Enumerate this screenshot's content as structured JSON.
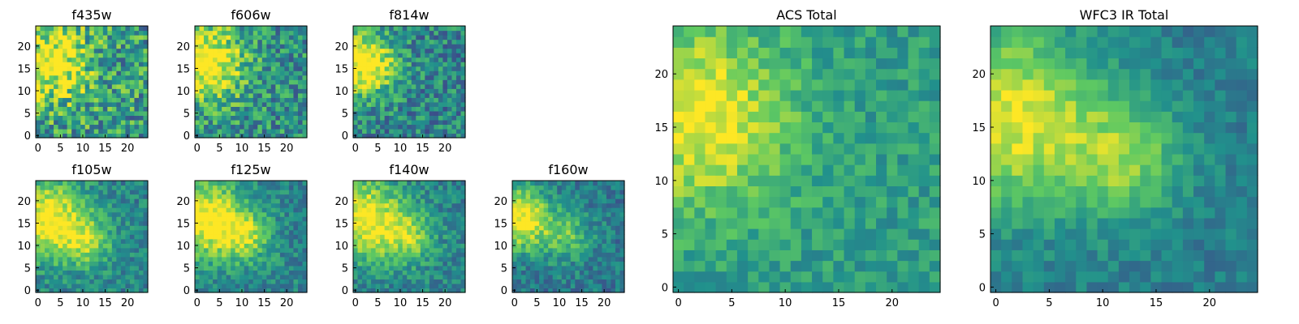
{
  "colormap": {
    "name": "viridis",
    "stops": [
      "#440154",
      "#3b528b",
      "#21918c",
      "#5ec962",
      "#fde725"
    ]
  },
  "chart_data": [
    {
      "type": "heatmap",
      "title": "f435w",
      "x_ticks": [
        "0",
        "5",
        "10",
        "15",
        "20"
      ],
      "y_ticks": [
        "0",
        "5",
        "10",
        "15",
        "20"
      ],
      "grid_size": [
        25,
        25
      ],
      "xlim": [
        0,
        24
      ],
      "ylim": [
        0,
        24
      ],
      "field": {
        "noise": 0.6,
        "seed": 11,
        "blobs": [
          [
            3,
            16,
            6,
            0.5
          ]
        ],
        "base": 0.55
      }
    },
    {
      "type": "heatmap",
      "title": "f606w",
      "x_ticks": [
        "0",
        "5",
        "10",
        "15",
        "20"
      ],
      "y_ticks": [
        "0",
        "5",
        "10",
        "15",
        "20"
      ],
      "grid_size": [
        25,
        25
      ],
      "xlim": [
        0,
        24
      ],
      "ylim": [
        0,
        24
      ],
      "field": {
        "noise": 0.5,
        "seed": 23,
        "blobs": [
          [
            2,
            16,
            6,
            0.6
          ]
        ],
        "base": 0.5
      }
    },
    {
      "type": "heatmap",
      "title": "f814w",
      "x_ticks": [
        "0",
        "5",
        "10",
        "15",
        "20"
      ],
      "y_ticks": [
        "0",
        "5",
        "10",
        "15",
        "20"
      ],
      "grid_size": [
        25,
        25
      ],
      "xlim": [
        0,
        24
      ],
      "ylim": [
        0,
        24
      ],
      "field": {
        "noise": 0.45,
        "seed": 37,
        "blobs": [
          [
            2,
            16,
            5,
            0.65
          ]
        ],
        "base": 0.45
      }
    },
    {
      "type": "heatmap",
      "title": "f105w",
      "x_ticks": [
        "0",
        "5",
        "10",
        "15",
        "20"
      ],
      "y_ticks": [
        "0",
        "5",
        "10",
        "15",
        "20"
      ],
      "grid_size": [
        25,
        25
      ],
      "xlim": [
        0,
        24
      ],
      "ylim": [
        0,
        24
      ],
      "field": {
        "noise": 0.3,
        "seed": 41,
        "blobs": [
          [
            2,
            16,
            6,
            0.6
          ],
          [
            11,
            11,
            4,
            0.35
          ]
        ],
        "base": 0.45
      }
    },
    {
      "type": "heatmap",
      "title": "f125w",
      "x_ticks": [
        "0",
        "5",
        "10",
        "15",
        "20"
      ],
      "y_ticks": [
        "0",
        "5",
        "10",
        "15",
        "20"
      ],
      "grid_size": [
        25,
        25
      ],
      "xlim": [
        0,
        24
      ],
      "ylim": [
        0,
        24
      ],
      "field": {
        "noise": 0.3,
        "seed": 53,
        "blobs": [
          [
            2,
            16,
            6,
            0.6
          ],
          [
            11,
            12,
            4,
            0.35
          ]
        ],
        "base": 0.45
      }
    },
    {
      "type": "heatmap",
      "title": "f140w",
      "x_ticks": [
        "0",
        "5",
        "10",
        "15",
        "20"
      ],
      "y_ticks": [
        "0",
        "5",
        "10",
        "15",
        "20"
      ],
      "grid_size": [
        25,
        25
      ],
      "xlim": [
        0,
        24
      ],
      "ylim": [
        0,
        24
      ],
      "field": {
        "noise": 0.3,
        "seed": 67,
        "blobs": [
          [
            2,
            16,
            6,
            0.6
          ],
          [
            12,
            12,
            4,
            0.35
          ]
        ],
        "base": 0.45
      }
    },
    {
      "type": "heatmap",
      "title": "f160w",
      "x_ticks": [
        "0",
        "5",
        "10",
        "15",
        "20"
      ],
      "y_ticks": [
        "0",
        "5",
        "10",
        "15",
        "20"
      ],
      "grid_size": [
        25,
        25
      ],
      "xlim": [
        0,
        24
      ],
      "ylim": [
        0,
        24
      ],
      "field": {
        "noise": 0.3,
        "seed": 79,
        "blobs": [
          [
            1,
            16,
            5,
            0.65
          ],
          [
            12,
            12,
            4,
            0.3
          ]
        ],
        "base": 0.4
      }
    },
    {
      "type": "heatmap",
      "title": "ACS Total",
      "x_ticks": [
        "0",
        "5",
        "10",
        "15",
        "20"
      ],
      "y_ticks": [
        "0",
        "5",
        "10",
        "15",
        "20"
      ],
      "grid_size": [
        25,
        25
      ],
      "xlim": [
        0,
        24
      ],
      "ylim": [
        0,
        24
      ],
      "field": {
        "noise": 0.25,
        "seed": 97,
        "blobs": [
          [
            2,
            16,
            6,
            0.45
          ]
        ],
        "base": 0.55
      }
    },
    {
      "type": "heatmap",
      "title": "WFC3 IR Total",
      "x_ticks": [
        "0",
        "5",
        "10",
        "15",
        "20"
      ],
      "y_ticks": [
        "0",
        "5",
        "10",
        "15",
        "20"
      ],
      "grid_size": [
        25,
        25
      ],
      "xlim": [
        0,
        24
      ],
      "ylim": [
        0,
        24
      ],
      "field": {
        "noise": 0.2,
        "seed": 113,
        "blobs": [
          [
            1,
            16,
            6,
            0.55
          ],
          [
            12,
            12,
            4,
            0.35
          ]
        ],
        "base": 0.42
      }
    }
  ]
}
